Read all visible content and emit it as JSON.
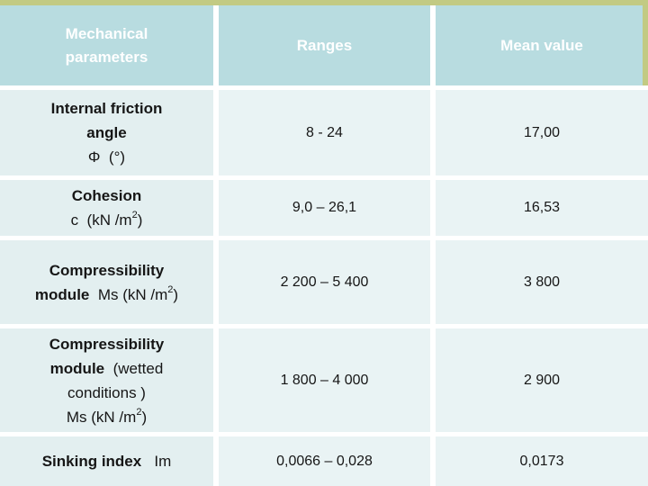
{
  "colors": {
    "accent_bar": "#c2ca83",
    "header_bg": "#b8dce0",
    "param_bg": "#e3eff0",
    "cell_bg": "#e9f3f4",
    "header_text": "#ffffff",
    "body_text": "#161616"
  },
  "table": {
    "headers": [
      "Mechanical parameters",
      "Ranges",
      "Mean value"
    ],
    "header_col1_line1": "Mechanical",
    "header_col1_line2": "parameters",
    "rows": [
      {
        "param_l1": "Internal friction",
        "param_l2": "angle",
        "param_l3": "Φ  (°)",
        "range": "8 - 24",
        "mean": "17,00"
      },
      {
        "param_l1": "Cohesion",
        "param_l2a": "c  (kN /m",
        "param_l2sup": "2",
        "param_l2b": ")",
        "range": "9,0 – 26,1",
        "mean": "16,53"
      },
      {
        "param_l1": "Compressibility",
        "param_l2bold": "module",
        "param_l2a": "  Ms (kN /m",
        "param_l2sup": "2",
        "param_l2b": ")",
        "range": "2 200 – 5 400",
        "mean": "3 800"
      },
      {
        "param_l1": "Compressibility",
        "param_l2bold": "module",
        "param_l2a": "  (wetted",
        "param_l3": "conditions )",
        "param_l4a": "Ms (kN /m",
        "param_l4sup": "2",
        "param_l4b": ")",
        "range": "1 800 – 4 000",
        "mean": "2 900"
      },
      {
        "param_bold": "Sinking index",
        "param_rest": "   Im",
        "range": "0,0066 – 0,028",
        "mean": "0,0173"
      }
    ]
  },
  "chart_data": {
    "type": "table",
    "title": "Mechanical parameters with ranges and mean values",
    "columns": [
      "Mechanical parameters",
      "Ranges",
      "Mean value"
    ],
    "rows": [
      [
        "Internal friction angle Φ (°)",
        "8 - 24",
        "17,00"
      ],
      [
        "Cohesion c (kN /m2)",
        "9,0 – 26,1",
        "16,53"
      ],
      [
        "Compressibility module Ms (kN /m2)",
        "2 200 – 5 400",
        "3 800"
      ],
      [
        "Compressibility module (wetted conditions ) Ms (kN /m2)",
        "1 800 – 4 000",
        "2 900"
      ],
      [
        "Sinking index Im",
        "0,0066 – 0,028",
        "0,0173"
      ]
    ]
  }
}
